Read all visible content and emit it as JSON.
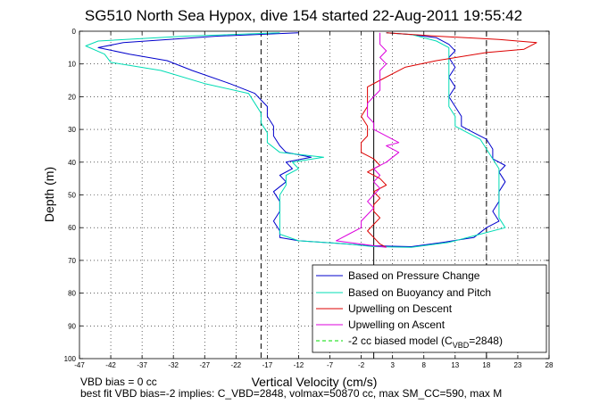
{
  "chart_data": {
    "type": "line",
    "title": "SG510 North Sea Hypox, dive 154 started 22-Aug-2011 19:55:42",
    "xlabel": "Vertical Velocity (cm/s)",
    "ylabel": "Depth (m)",
    "xlim": [
      -47,
      28
    ],
    "ylim": [
      0,
      100
    ],
    "y_reversed": true,
    "grid": true,
    "x_ticks": [
      -47,
      -42,
      -37,
      -32,
      -27,
      -22,
      -17,
      -12,
      -7,
      -2,
      3,
      8,
      13,
      18,
      23,
      28
    ],
    "x_tick_labels": [
      "-47",
      "-42",
      "-37",
      "-32",
      "-27",
      "-22",
      "-17",
      "-12",
      "-7",
      "-2",
      "3",
      "8",
      "13",
      "18",
      "23",
      "28"
    ],
    "y_ticks": [
      0,
      10,
      20,
      30,
      40,
      50,
      60,
      70,
      80,
      90,
      100
    ],
    "y_tick_labels": [
      "0",
      "10",
      "20",
      "30",
      "40",
      "50",
      "60",
      "70",
      "80",
      "90",
      "100"
    ],
    "legend_position": "bottom-right",
    "reference_lines": [
      {
        "kind": "vline",
        "x": 0,
        "style": "solid",
        "color": "#000000"
      },
      {
        "kind": "vline",
        "x": -18,
        "style": "dashed",
        "color": "#000000"
      },
      {
        "kind": "vline",
        "x": 18,
        "style": "dashed",
        "color": "#000000"
      }
    ],
    "series": [
      {
        "name": "Based on Pressure Change",
        "color": "#0000cc",
        "style": "solid",
        "points": [
          [
            -12,
            0.5
          ],
          [
            -25,
            1.5
          ],
          [
            -40,
            3.5
          ],
          [
            -44,
            5
          ],
          [
            -39,
            7
          ],
          [
            -33,
            9
          ],
          [
            -29,
            12
          ],
          [
            -23,
            16
          ],
          [
            -19,
            19
          ],
          [
            -18,
            21
          ],
          [
            -17,
            23
          ],
          [
            -17,
            26
          ],
          [
            -16,
            29
          ],
          [
            -16,
            32
          ],
          [
            -15,
            35
          ],
          [
            -14,
            37
          ],
          [
            -10,
            38.5
          ],
          [
            -14,
            40
          ],
          [
            -13,
            42
          ],
          [
            -15,
            44
          ],
          [
            -14,
            46
          ],
          [
            -16,
            49
          ],
          [
            -15,
            52
          ],
          [
            -15,
            55
          ],
          [
            -16,
            58
          ],
          [
            -15,
            61
          ],
          [
            -15,
            63
          ],
          [
            -12,
            64
          ],
          [
            -4,
            65
          ],
          [
            -1,
            65.5
          ],
          [
            6,
            65.8
          ],
          [
            11,
            64.5
          ],
          [
            16,
            63
          ],
          [
            18,
            60
          ],
          [
            20,
            58
          ],
          [
            19,
            55
          ],
          [
            20,
            52
          ],
          [
            20,
            49
          ],
          [
            21,
            46
          ],
          [
            20,
            43
          ],
          [
            21,
            41
          ],
          [
            19,
            39
          ],
          [
            19,
            36
          ],
          [
            18,
            33
          ],
          [
            16,
            31
          ],
          [
            14,
            29
          ],
          [
            14,
            26
          ],
          [
            13,
            23
          ],
          [
            12,
            20
          ],
          [
            13,
            17
          ],
          [
            12,
            14
          ],
          [
            13,
            11
          ],
          [
            12,
            8
          ],
          [
            13,
            6
          ],
          [
            12,
            4
          ],
          [
            10,
            2
          ],
          [
            6,
            1
          ],
          [
            2,
            0.5
          ]
        ]
      },
      {
        "name": "Based on Buoyancy and Pitch",
        "color": "#00dcb4",
        "style": "solid",
        "points": [
          [
            -15,
            0.5
          ],
          [
            -30,
            1.5
          ],
          [
            -44,
            3
          ],
          [
            -46,
            4.5
          ],
          [
            -43,
            7
          ],
          [
            -42,
            9.5
          ],
          [
            -34,
            12
          ],
          [
            -27,
            16
          ],
          [
            -20,
            19
          ],
          [
            -19,
            22
          ],
          [
            -18,
            25
          ],
          [
            -18,
            28
          ],
          [
            -17,
            31
          ],
          [
            -17,
            34
          ],
          [
            -15,
            37
          ],
          [
            -8,
            38.5
          ],
          [
            -13,
            40
          ],
          [
            -12,
            42
          ],
          [
            -14,
            44
          ],
          [
            -14,
            47
          ],
          [
            -15,
            50
          ],
          [
            -15,
            53
          ],
          [
            -15,
            56
          ],
          [
            -15,
            59
          ],
          [
            -15,
            62
          ],
          [
            -12,
            64
          ],
          [
            -4,
            65
          ],
          [
            0,
            65.8
          ],
          [
            6,
            66
          ],
          [
            12,
            64.5
          ],
          [
            17,
            62
          ],
          [
            21,
            60
          ],
          [
            20,
            57
          ],
          [
            20,
            54
          ],
          [
            20,
            51
          ],
          [
            20,
            48
          ],
          [
            20,
            45
          ],
          [
            20,
            42
          ],
          [
            19,
            39
          ],
          [
            18,
            36
          ],
          [
            17,
            33
          ],
          [
            15,
            31
          ],
          [
            13,
            29
          ],
          [
            13,
            26
          ],
          [
            12,
            23
          ],
          [
            12,
            20
          ],
          [
            12,
            17
          ],
          [
            12,
            14
          ],
          [
            12,
            11
          ],
          [
            12,
            8
          ],
          [
            12,
            5
          ],
          [
            10,
            3
          ],
          [
            6,
            1
          ],
          [
            2,
            0.5
          ]
        ]
      },
      {
        "name": "Upwelling on Descent",
        "color": "#dd0000",
        "style": "solid",
        "points": [
          [
            2,
            0.5
          ],
          [
            10,
            1.5
          ],
          [
            20,
            2.5
          ],
          [
            26,
            3.5
          ],
          [
            24,
            5.5
          ],
          [
            18,
            6.5
          ],
          [
            10,
            9
          ],
          [
            5,
            11
          ],
          [
            3,
            13
          ],
          [
            1,
            15
          ],
          [
            -1,
            17
          ],
          [
            -1,
            19
          ],
          [
            -1,
            21
          ],
          [
            -1,
            23
          ],
          [
            -2,
            26
          ],
          [
            -1,
            29
          ],
          [
            -1,
            32
          ],
          [
            -2,
            34
          ],
          [
            -2,
            37
          ],
          [
            0,
            39
          ],
          [
            1,
            41
          ],
          [
            -1,
            43
          ],
          [
            1,
            45
          ],
          [
            2,
            47
          ],
          [
            0,
            49
          ],
          [
            1,
            51
          ],
          [
            0,
            53
          ],
          [
            0,
            55
          ],
          [
            1,
            57
          ],
          [
            0,
            59
          ],
          [
            -1,
            61
          ],
          [
            0,
            63
          ],
          [
            1,
            65
          ],
          [
            2,
            66
          ]
        ]
      },
      {
        "name": "Upwelling on Ascent",
        "color": "#dd00dd",
        "style": "solid",
        "points": [
          [
            2,
            66
          ],
          [
            -2,
            65
          ],
          [
            -6,
            64
          ],
          [
            -4,
            62
          ],
          [
            -2,
            60
          ],
          [
            -2,
            58
          ],
          [
            -1,
            56
          ],
          [
            0,
            54
          ],
          [
            -1,
            52
          ],
          [
            0,
            50
          ],
          [
            1,
            48
          ],
          [
            0,
            46
          ],
          [
            1,
            44
          ],
          [
            0,
            42
          ],
          [
            2,
            40
          ],
          [
            4,
            37
          ],
          [
            2,
            35
          ],
          [
            4,
            34
          ],
          [
            2,
            32
          ],
          [
            0,
            30
          ],
          [
            0,
            28
          ],
          [
            -1,
            26
          ],
          [
            -1,
            24
          ],
          [
            -1,
            22
          ],
          [
            0,
            20
          ],
          [
            1,
            18
          ],
          [
            1,
            15
          ],
          [
            1,
            12
          ],
          [
            2,
            10
          ],
          [
            1,
            8
          ],
          [
            2,
            6
          ],
          [
            1,
            4
          ],
          [
            1,
            2
          ],
          [
            1,
            0.5
          ]
        ]
      },
      {
        "name": "-2 cc biased model (C_VBD=2848)",
        "legend_main": "-2 cc biased model (C",
        "legend_sub": "VBD",
        "legend_tail": "=2848)",
        "color": "#00dd00",
        "style": "dashed",
        "points": []
      }
    ]
  },
  "footer": {
    "line1": "VBD bias = 0 cc",
    "line2": "best fit VBD bias=-2 implies: C_VBD=2848, volmax=50870 cc, max SM_CC=590, max M"
  }
}
